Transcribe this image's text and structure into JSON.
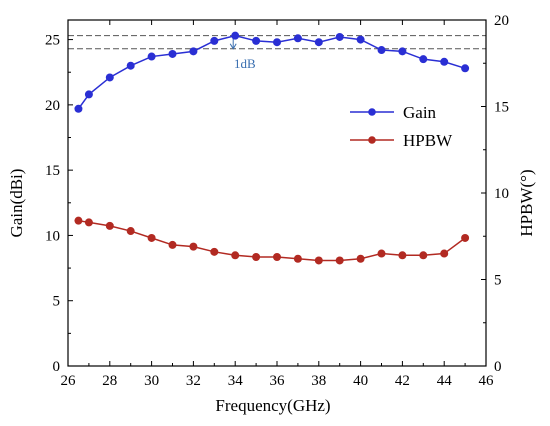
{
  "chart_data": {
    "type": "line",
    "x": [
      26.5,
      27,
      28,
      29,
      30,
      31,
      32,
      33,
      34,
      35,
      36,
      37,
      38,
      39,
      40,
      41,
      42,
      43,
      44,
      45
    ],
    "xlabel": "Frequency(GHz)",
    "xlim": [
      26,
      46
    ],
    "xticks": [
      26,
      28,
      30,
      32,
      34,
      36,
      38,
      40,
      42,
      44,
      46
    ],
    "ylabel": "Gain(dBi)",
    "ylim": [
      0,
      26.5
    ],
    "yticks": [
      0,
      5,
      10,
      15,
      20,
      25
    ],
    "y2label": "HPBW(°)",
    "y2lim": [
      0,
      20
    ],
    "y2ticks": [
      0,
      5,
      10,
      15,
      20
    ],
    "series": [
      {
        "name": "Gain",
        "axis": "left",
        "color": "#2a2fd4",
        "values": [
          19.7,
          20.8,
          22.1,
          23.0,
          23.7,
          23.9,
          24.1,
          24.9,
          25.3,
          24.9,
          24.8,
          25.1,
          24.8,
          25.2,
          25.0,
          24.2,
          24.1,
          23.5,
          23.3,
          22.8
        ]
      },
      {
        "name": "HPBW",
        "axis": "right",
        "color": "#b22a22",
        "values": [
          8.4,
          8.3,
          8.1,
          7.8,
          7.4,
          7.0,
          6.9,
          6.6,
          6.4,
          6.3,
          6.3,
          6.2,
          6.1,
          6.1,
          6.2,
          6.5,
          6.4,
          6.4,
          6.5,
          7.4
        ]
      }
    ],
    "reference_lines": [
      25.3,
      24.3
    ],
    "annotation": "1dB",
    "annotation_color": "#3a6fb0",
    "legend": "right-middle",
    "grid": false
  }
}
